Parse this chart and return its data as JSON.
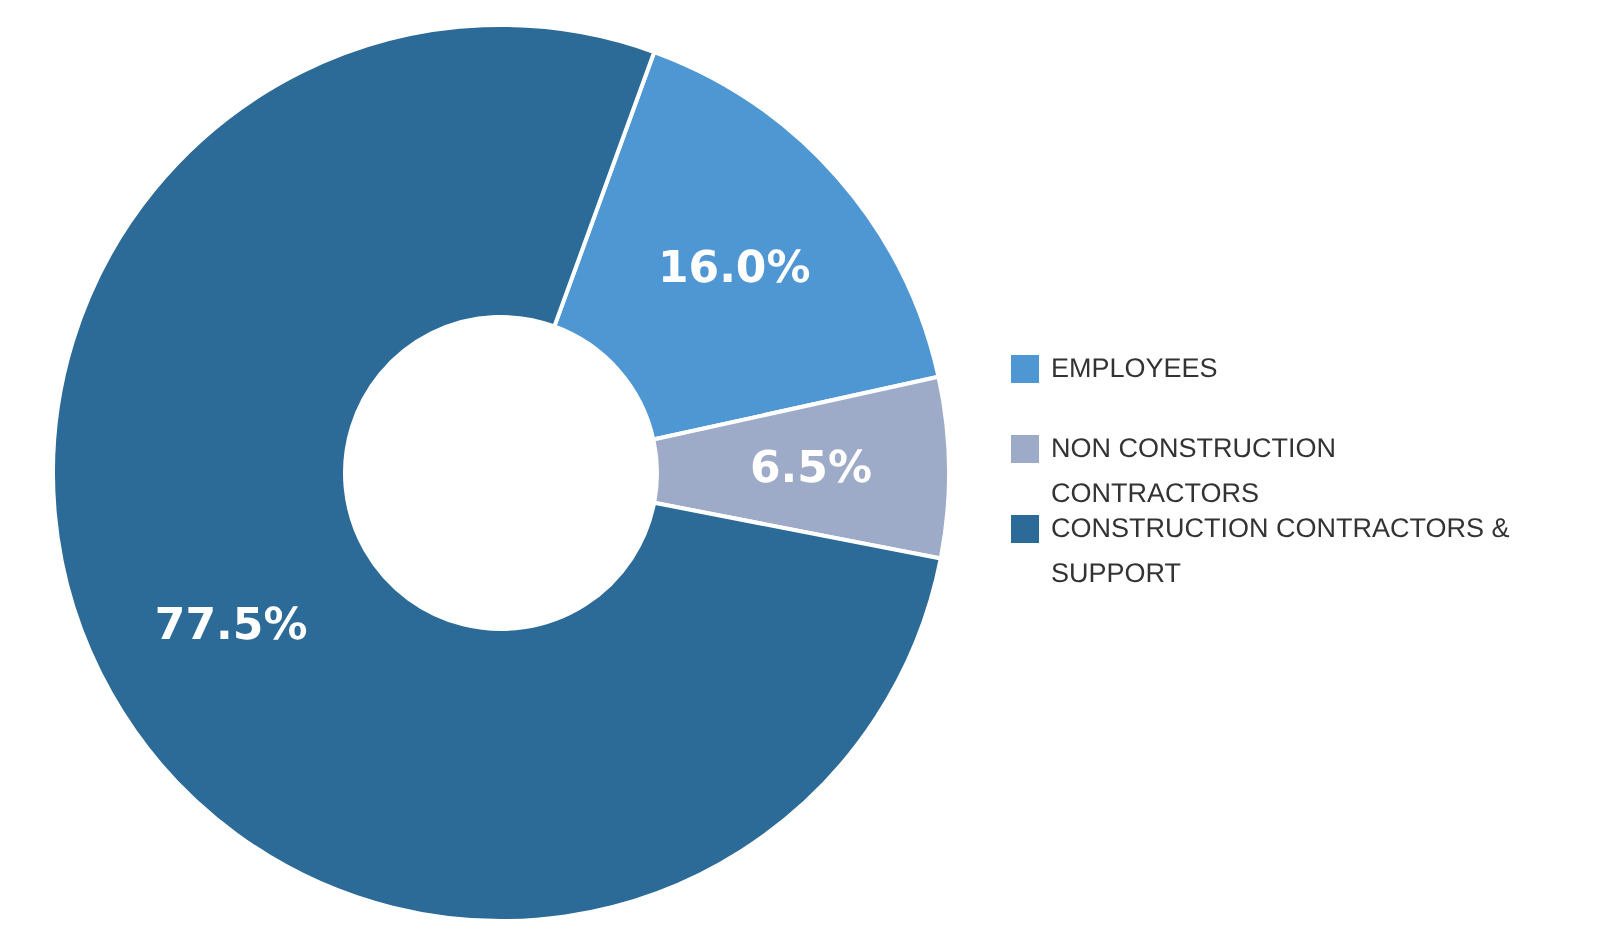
{
  "chart_data": {
    "type": "donut",
    "categories": [
      "EMPLOYEES",
      "NON CONSTRUCTION CONTRACTORS",
      "CONSTRUCTION CONTRACTORS & SUPPORT"
    ],
    "values": [
      16.0,
      6.5,
      77.5
    ],
    "colors": [
      "#4f97d3",
      "#9eabc8",
      "#2c6a97"
    ],
    "value_labels": [
      "16.0%",
      "6.5%",
      "77.5%"
    ],
    "legend": "right"
  }
}
